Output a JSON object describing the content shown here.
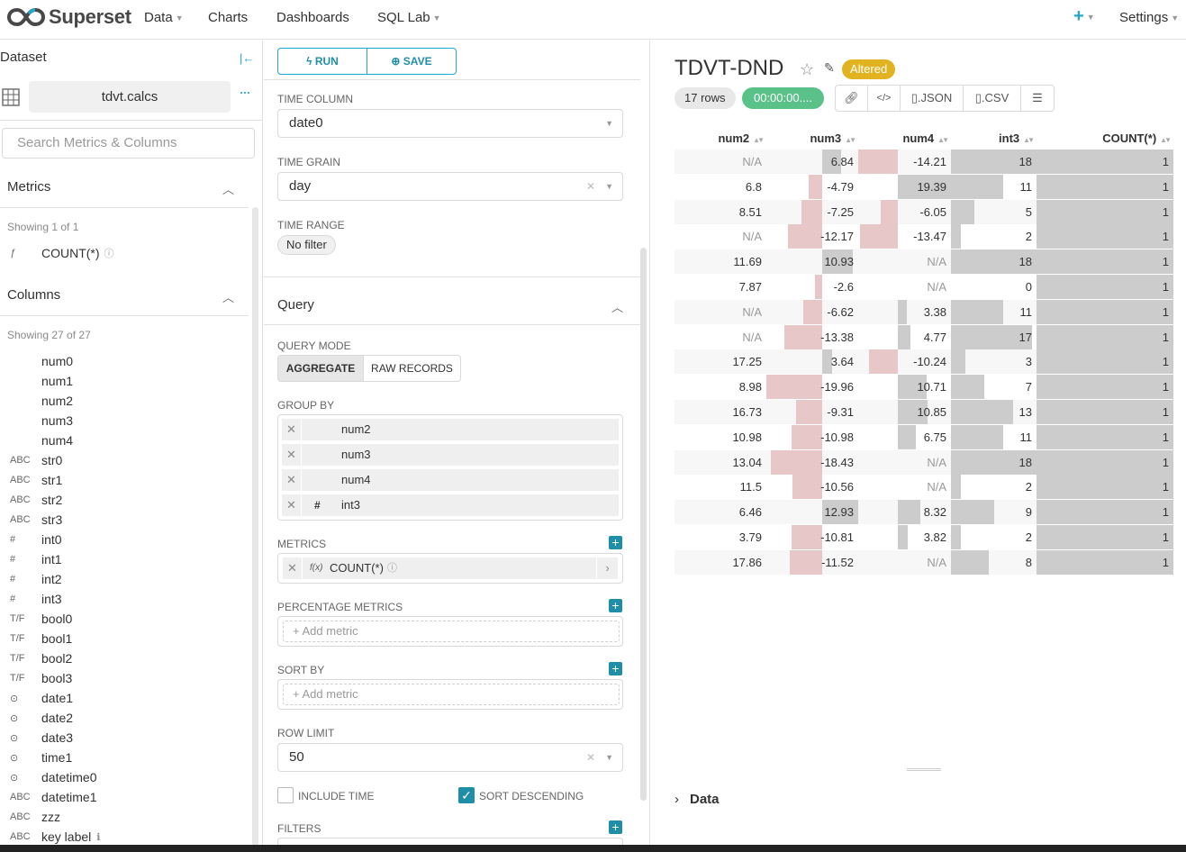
{
  "nav": {
    "brand": "Superset",
    "data": "Data",
    "charts": "Charts",
    "dashboards": "Dashboards",
    "sqllab": "SQL Lab",
    "plus": "+",
    "settings": "Settings"
  },
  "dataset": {
    "label": "Dataset",
    "name": "tdvt.calcs",
    "dots": "···",
    "search_placeholder": "Search Metrics & Columns"
  },
  "metrics": {
    "title": "Metrics",
    "showing": "Showing 1 of 1",
    "items": [
      {
        "type": "ƒ",
        "name": "COUNT(*)"
      }
    ]
  },
  "columns": {
    "title": "Columns",
    "showing": "Showing 27 of 27",
    "items": [
      {
        "type": "",
        "name": "num0"
      },
      {
        "type": "",
        "name": "num1"
      },
      {
        "type": "",
        "name": "num2"
      },
      {
        "type": "",
        "name": "num3"
      },
      {
        "type": "",
        "name": "num4"
      },
      {
        "type": "ABC",
        "name": "str0"
      },
      {
        "type": "ABC",
        "name": "str1"
      },
      {
        "type": "ABC",
        "name": "str2"
      },
      {
        "type": "ABC",
        "name": "str3"
      },
      {
        "type": "#",
        "name": "int0"
      },
      {
        "type": "#",
        "name": "int1"
      },
      {
        "type": "#",
        "name": "int2"
      },
      {
        "type": "#",
        "name": "int3"
      },
      {
        "type": "T/F",
        "name": "bool0"
      },
      {
        "type": "T/F",
        "name": "bool1"
      },
      {
        "type": "T/F",
        "name": "bool2"
      },
      {
        "type": "T/F",
        "name": "bool3"
      },
      {
        "type": "⊙",
        "name": "date1"
      },
      {
        "type": "⊙",
        "name": "date2"
      },
      {
        "type": "⊙",
        "name": "date3"
      },
      {
        "type": "⊙",
        "name": "time1"
      },
      {
        "type": "⊙",
        "name": "datetime0"
      },
      {
        "type": "ABC",
        "name": "datetime1"
      },
      {
        "type": "ABC",
        "name": "zzz"
      },
      {
        "type": "ABC",
        "name": "key label"
      }
    ]
  },
  "controls": {
    "run": "RUN",
    "save": "SAVE",
    "time_column_label": "TIME COLUMN",
    "time_column": "date0",
    "time_grain_label": "TIME GRAIN",
    "time_grain": "day",
    "time_range_label": "TIME RANGE",
    "time_range": "No filter",
    "query_title": "Query",
    "query_mode_label": "QUERY MODE",
    "mode_aggregate": "AGGREGATE",
    "mode_raw": "RAW RECORDS",
    "group_by_label": "GROUP BY",
    "group_by": [
      {
        "type": "",
        "name": "num2"
      },
      {
        "type": "",
        "name": "num3"
      },
      {
        "type": "",
        "name": "num4"
      },
      {
        "type": "#",
        "name": "int3"
      }
    ],
    "metrics_label": "METRICS",
    "metric": "COUNT(*)",
    "metric_fx": "f(x)",
    "pct_metrics_label": "PERCENTAGE METRICS",
    "add_metric": "Add metric",
    "sort_by_label": "SORT BY",
    "row_limit_label": "ROW LIMIT",
    "row_limit": "50",
    "include_time": "INCLUDE TIME",
    "sort_descending": "SORT DESCENDING",
    "filters_label": "FILTERS"
  },
  "chart": {
    "title": "TDVT-DND",
    "altered": "Altered",
    "rows": "17 rows",
    "time": "00:00:00....",
    "json": ".JSON",
    "csv": ".CSV",
    "columns": [
      "num2",
      "num3",
      "num4",
      "int3",
      "COUNT(*)"
    ],
    "rows_data": [
      [
        "N/A",
        "6.84",
        "-14.21",
        "18",
        "1"
      ],
      [
        "6.8",
        "-4.79",
        "19.39",
        "11",
        "1"
      ],
      [
        "8.51",
        "-7.25",
        "-6.05",
        "5",
        "1"
      ],
      [
        "N/A",
        "-12.17",
        "-13.47",
        "2",
        "1"
      ],
      [
        "11.69",
        "10.93",
        "N/A",
        "18",
        "1"
      ],
      [
        "7.87",
        "-2.6",
        "N/A",
        "0",
        "1"
      ],
      [
        "N/A",
        "-6.62",
        "3.38",
        "11",
        "1"
      ],
      [
        "N/A",
        "-13.38",
        "4.77",
        "17",
        "1"
      ],
      [
        "17.25",
        "3.64",
        "-10.24",
        "3",
        "1"
      ],
      [
        "8.98",
        "-19.96",
        "10.71",
        "7",
        "1"
      ],
      [
        "16.73",
        "-9.31",
        "10.85",
        "13",
        "1"
      ],
      [
        "10.98",
        "-10.98",
        "6.75",
        "11",
        "1"
      ],
      [
        "13.04",
        "-18.43",
        "N/A",
        "18",
        "1"
      ],
      [
        "11.5",
        "-10.56",
        "N/A",
        "2",
        "1"
      ],
      [
        "6.46",
        "12.93",
        "8.32",
        "9",
        "1"
      ],
      [
        "3.79",
        "-10.81",
        "3.82",
        "2",
        "1"
      ],
      [
        "17.86",
        "-11.52",
        "N/A",
        "8",
        "1"
      ]
    ],
    "data_section": "Data",
    "colors": {
      "pos": "#cccccc",
      "neg": "#e8c7c9"
    }
  }
}
